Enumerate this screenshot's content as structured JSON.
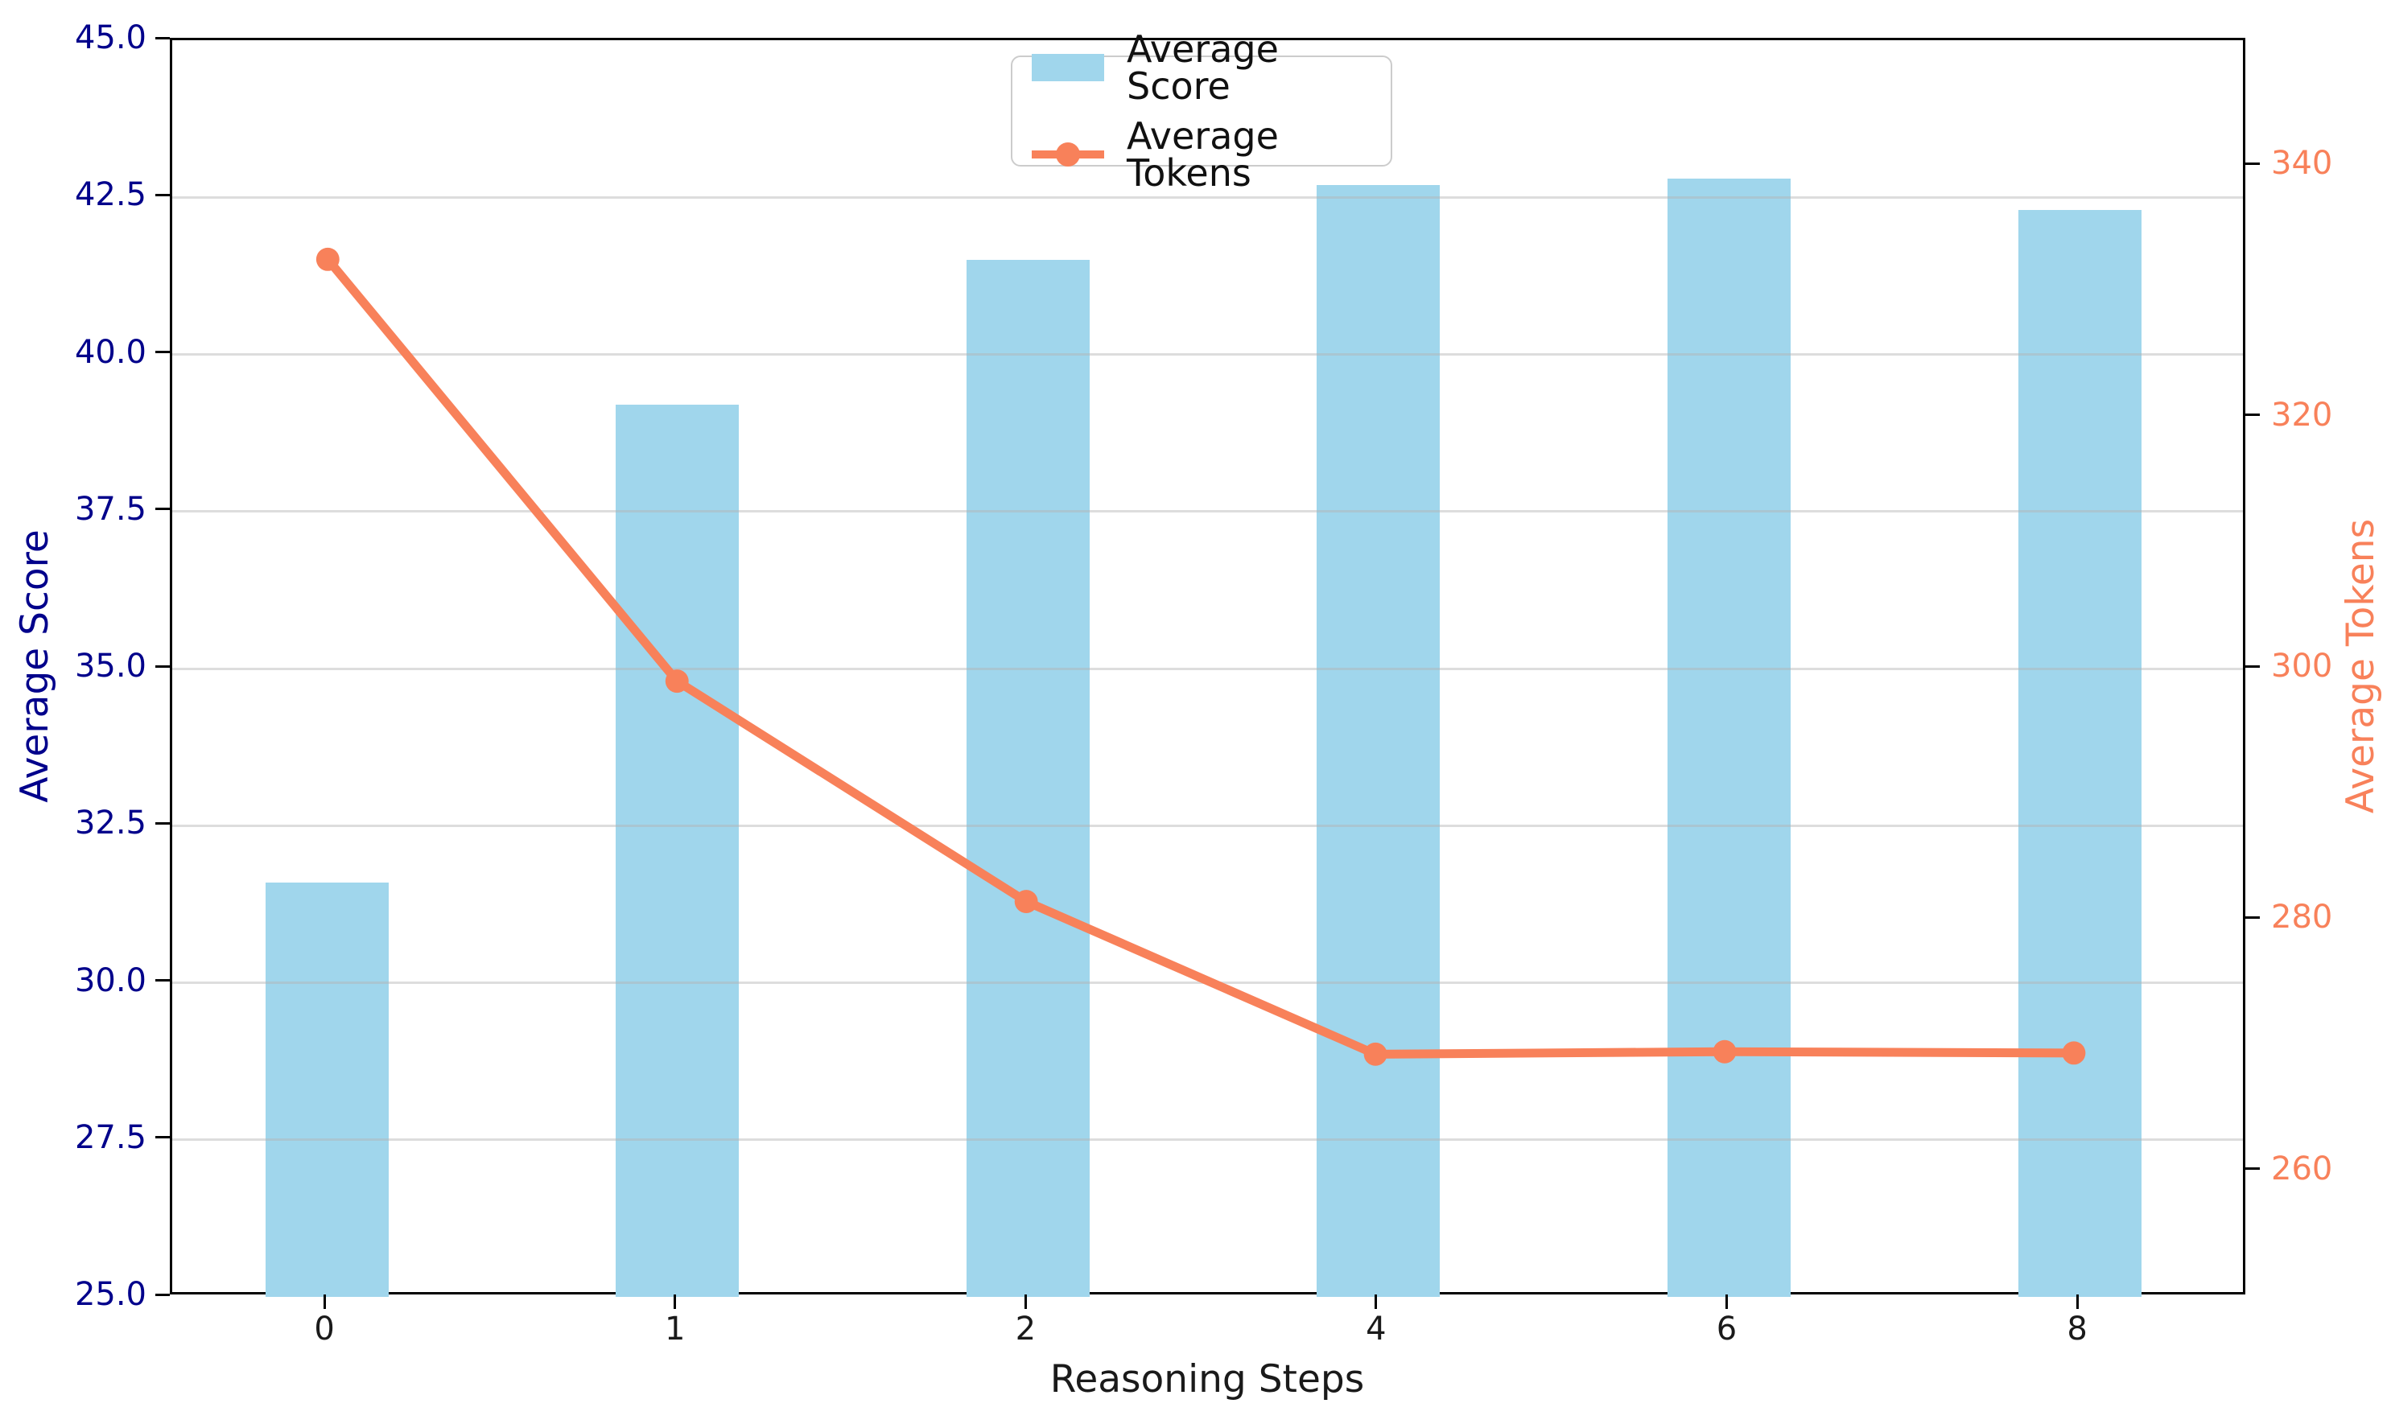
{
  "figure": {
    "background": "#ffffff"
  },
  "chart_data": {
    "type": "combo-bar-line",
    "categories": [
      "0",
      "1",
      "2",
      "4",
      "6",
      "8"
    ],
    "series": [
      {
        "name": "Average Score",
        "type": "bar",
        "axis": "left",
        "color": "#A0D6EC",
        "values": [
          31.6,
          39.2,
          41.5,
          42.7,
          42.8,
          42.3
        ]
      },
      {
        "name": "Average Tokens",
        "type": "line",
        "axis": "right",
        "color": "#F8815A",
        "marker": "circle",
        "values": [
          332.5,
          298.8,
          281.2,
          269.0,
          269.2,
          269.1
        ]
      }
    ],
    "xlabel": "Reasoning Steps",
    "left_axis": {
      "label": "Average Score",
      "color": "#00008B",
      "lim": [
        25,
        45
      ],
      "ticks": [
        "25.0",
        "27.5",
        "30.0",
        "32.5",
        "35.0",
        "37.5",
        "40.0",
        "42.5",
        "45.0"
      ]
    },
    "right_axis": {
      "label": "Average Tokens",
      "color": "#F8815A",
      "lim": [
        250,
        350
      ],
      "ticks": [
        "260",
        "280",
        "300",
        "320",
        "340"
      ]
    },
    "grid": true,
    "grid_color": "#e3e3e3",
    "legend": {
      "position": "upper-center-left",
      "entries": [
        "Average Score",
        "Average Tokens"
      ]
    }
  }
}
